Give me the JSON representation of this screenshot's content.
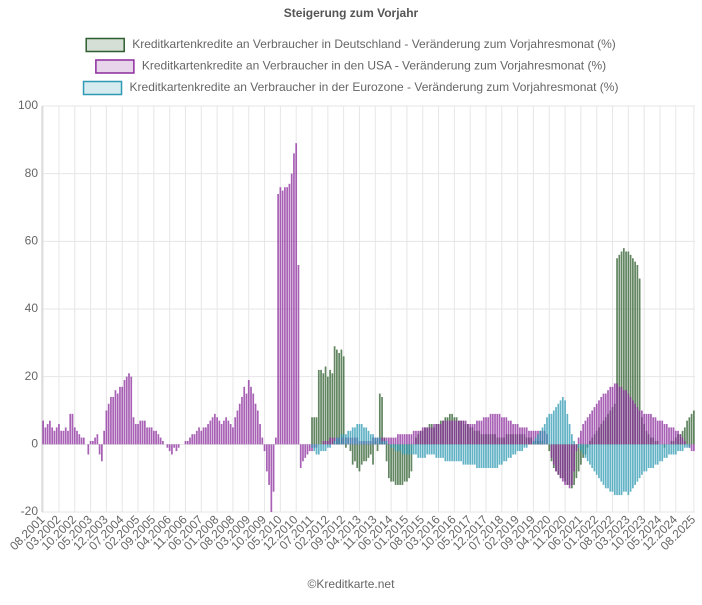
{
  "chart_data": {
    "type": "bar",
    "title": "Steigerung zum Vorjahr",
    "footer": "©Kreditkarte.net",
    "categories": [
      "08.2001",
      null,
      null,
      null,
      null,
      null,
      null,
      "03.2002",
      null,
      null,
      null,
      null,
      null,
      null,
      "10.2002",
      null,
      null,
      null,
      null,
      null,
      null,
      "05.2003",
      null,
      null,
      null,
      null,
      null,
      null,
      "12.2003",
      null,
      null,
      null,
      null,
      null,
      null,
      "07.2004",
      null,
      null,
      null,
      null,
      null,
      null,
      "02.2005",
      null,
      null,
      null,
      null,
      null,
      null,
      "09.2005",
      null,
      null,
      null,
      null,
      null,
      null,
      "04.2006",
      null,
      null,
      null,
      null,
      null,
      null,
      "11.2006",
      null,
      null,
      null,
      null,
      null,
      null,
      "06.2007",
      null,
      null,
      null,
      null,
      null,
      null,
      "01.2008",
      null,
      null,
      null,
      null,
      null,
      null,
      "08.2008",
      null,
      null,
      null,
      null,
      null,
      null,
      "03.2009",
      null,
      null,
      null,
      null,
      null,
      null,
      "10.2009",
      null,
      null,
      null,
      null,
      null,
      null,
      "05.2010",
      null,
      null,
      null,
      null,
      null,
      null,
      "12.2010",
      null,
      null,
      null,
      null,
      null,
      null,
      "07.2011",
      null,
      null,
      null,
      null,
      null,
      null,
      "02.2012",
      null,
      null,
      null,
      null,
      null,
      null,
      "09.2012",
      null,
      null,
      null,
      null,
      null,
      null,
      "04.2013",
      null,
      null,
      null,
      null,
      null,
      null,
      "11.2013",
      null,
      null,
      null,
      null,
      null,
      null,
      "06.2014",
      null,
      null,
      null,
      null,
      null,
      null,
      "01.2015",
      null,
      null,
      null,
      null,
      null,
      null,
      "08.2015",
      null,
      null,
      null,
      null,
      null,
      null,
      "03.2016",
      null,
      null,
      null,
      null,
      null,
      null,
      "10.2016",
      null,
      null,
      null,
      null,
      null,
      null,
      "05.2017",
      null,
      null,
      null,
      null,
      null,
      null,
      "12.2017",
      null,
      null,
      null,
      null,
      null,
      null,
      "07.2018",
      null,
      null,
      null,
      null,
      null,
      null,
      "02.2019",
      null,
      null,
      null,
      null,
      null,
      null,
      "09.2019",
      null,
      null,
      null,
      null,
      null,
      null,
      "04.2020",
      null,
      null,
      null,
      null,
      null,
      null,
      "11.2020",
      null,
      null,
      null,
      null,
      null,
      null,
      "06.2021",
      null,
      null,
      null,
      null,
      null,
      null,
      "01.2022",
      null,
      null,
      null,
      null,
      null,
      null,
      "08.2022",
      null,
      null,
      null,
      null,
      null,
      null,
      "03.2023",
      null,
      null,
      null,
      null,
      null,
      null,
      "10.2023",
      null,
      null,
      null,
      null,
      null,
      null,
      "05.2024",
      null,
      null,
      null,
      null,
      null,
      null,
      "12.2024",
      null,
      null,
      null,
      null,
      null,
      null,
      null,
      "08.2025"
    ],
    "series": [
      {
        "name": "Kreditkartenkredite an Verbraucher in Deutschland - Veränderung zum Vorjahresmonat (%)",
        "color": "#2e5e2e",
        "fill": "rgba(46,94,46,0.2)",
        "values": [
          null,
          null,
          null,
          null,
          null,
          null,
          null,
          null,
          null,
          null,
          null,
          null,
          null,
          null,
          null,
          null,
          null,
          null,
          null,
          null,
          null,
          null,
          null,
          null,
          null,
          null,
          null,
          null,
          null,
          null,
          null,
          null,
          null,
          null,
          null,
          null,
          null,
          null,
          null,
          null,
          null,
          null,
          null,
          null,
          null,
          null,
          null,
          null,
          null,
          null,
          null,
          null,
          null,
          null,
          null,
          null,
          null,
          null,
          null,
          null,
          null,
          null,
          null,
          null,
          null,
          null,
          null,
          null,
          null,
          null,
          null,
          null,
          null,
          null,
          null,
          null,
          null,
          null,
          null,
          null,
          null,
          null,
          null,
          null,
          null,
          null,
          null,
          null,
          null,
          null,
          null,
          null,
          null,
          null,
          null,
          null,
          null,
          null,
          null,
          null,
          null,
          null,
          null,
          null,
          null,
          null,
          null,
          null,
          null,
          null,
          null,
          null,
          null,
          null,
          null,
          null,
          null,
          null,
          null,
          8,
          8,
          8,
          22,
          22,
          21,
          23,
          20,
          22,
          21,
          29,
          28,
          27,
          28,
          26,
          -1,
          0,
          -2,
          -6,
          -5,
          -7,
          -8,
          -6,
          -5,
          -5,
          -4,
          -3,
          -6,
          1,
          -2,
          15,
          14,
          2,
          -5,
          -10,
          -11,
          -11,
          -12,
          -12,
          -12,
          -12,
          -11,
          -11,
          -10,
          -8,
          0,
          2,
          3,
          4,
          4,
          5,
          5,
          6,
          6,
          5,
          6,
          6,
          7,
          7,
          8,
          8,
          9,
          9,
          8,
          8,
          7,
          7,
          7,
          6,
          6,
          5,
          5,
          4,
          4,
          4,
          3,
          3,
          3,
          3,
          3,
          3,
          3,
          2,
          2,
          2,
          2,
          3,
          3,
          3,
          3,
          3,
          3,
          3,
          3,
          3,
          2,
          2,
          2,
          1,
          1,
          1,
          1,
          1,
          0,
          0,
          -2,
          -5,
          -7,
          -8,
          -9,
          -10,
          -10,
          -11,
          -12,
          -12,
          -13,
          -12,
          -10,
          -8,
          -6,
          -4,
          -3,
          -1,
          1,
          2,
          3,
          4,
          5,
          6,
          7,
          8,
          9,
          10,
          11,
          12,
          55,
          56,
          57,
          58,
          57,
          57,
          56,
          55,
          54,
          53,
          49,
          8,
          6,
          4,
          3,
          2,
          2,
          1,
          1,
          0,
          0,
          -1,
          0,
          0,
          1,
          1,
          2,
          3,
          3,
          4,
          5,
          7,
          8,
          9,
          10
        ]
      },
      {
        "name": "Kreditkartenkredite an Verbraucher in den USA - Veränderung zum Vorjahresmonat (%)",
        "color": "#8b2c9c",
        "fill": "rgba(139,44,156,0.2)",
        "values": [
          7,
          5,
          6,
          7,
          5,
          4,
          5,
          6,
          4,
          4,
          5,
          4,
          9,
          9,
          5,
          4,
          3,
          2,
          2,
          0,
          -3,
          1,
          1,
          2,
          3,
          -3,
          -5,
          4,
          10,
          12,
          14,
          14,
          16,
          15,
          17,
          17,
          19,
          20,
          21,
          20,
          8,
          6,
          6,
          7,
          7,
          7,
          5,
          5,
          5,
          4,
          4,
          3,
          2,
          1,
          0,
          -1,
          -2,
          -3,
          -1,
          -2,
          -1,
          0,
          0,
          1,
          1,
          2,
          3,
          3,
          4,
          5,
          4,
          5,
          5,
          6,
          7,
          8,
          9,
          8,
          7,
          6,
          7,
          8,
          7,
          6,
          5,
          8,
          10,
          12,
          14,
          17,
          15,
          19,
          17,
          15,
          12,
          10,
          6,
          2,
          -2,
          -8,
          -12,
          -20,
          -14,
          2,
          74,
          76,
          75,
          76,
          76,
          77,
          80,
          86,
          89,
          53,
          -7,
          -5,
          -4,
          -3,
          -2,
          -2,
          -1,
          -1,
          0,
          0,
          1,
          1,
          1,
          2,
          2,
          2,
          2,
          2,
          2,
          2,
          2,
          2,
          2,
          2,
          2,
          2,
          1,
          1,
          1,
          1,
          1,
          1,
          2,
          2,
          2,
          2,
          2,
          2,
          2,
          2,
          2,
          2,
          2,
          3,
          3,
          3,
          3,
          3,
          3,
          3,
          4,
          4,
          4,
          4,
          5,
          5,
          5,
          5,
          5,
          6,
          6,
          6,
          6,
          7,
          7,
          7,
          7,
          7,
          7,
          7,
          7,
          7,
          7,
          7,
          6,
          6,
          6,
          6,
          7,
          7,
          7,
          8,
          8,
          8,
          9,
          9,
          9,
          9,
          9,
          8,
          8,
          8,
          7,
          7,
          6,
          6,
          6,
          5,
          5,
          5,
          5,
          4,
          4,
          4,
          4,
          4,
          4,
          4,
          4,
          3,
          0,
          -4,
          -6,
          -8,
          -9,
          -10,
          -11,
          -12,
          -12,
          -13,
          -12,
          -8,
          -2,
          2,
          4,
          6,
          7,
          8,
          9,
          10,
          11,
          12,
          13,
          14,
          15,
          15,
          16,
          17,
          17,
          18,
          18,
          17,
          17,
          16,
          16,
          15,
          14,
          13,
          12,
          11,
          10,
          10,
          9,
          9,
          9,
          9,
          8,
          8,
          7,
          7,
          7,
          6,
          6,
          5,
          5,
          5,
          4,
          4,
          3,
          2,
          1,
          0,
          -1,
          -2,
          -2
        ]
      },
      {
        "name": "Kreditkartenkredite an Verbraucher in der Eurozone - Veränderung zum Vorjahresmonat (%)",
        "color": "#2f9ab3",
        "fill": "rgba(47,154,179,0.2)",
        "values": [
          null,
          null,
          null,
          null,
          null,
          null,
          null,
          null,
          null,
          null,
          null,
          null,
          null,
          null,
          null,
          null,
          null,
          null,
          null,
          null,
          null,
          null,
          null,
          null,
          null,
          null,
          null,
          null,
          null,
          null,
          null,
          null,
          null,
          null,
          null,
          null,
          null,
          null,
          null,
          null,
          null,
          null,
          null,
          null,
          null,
          null,
          null,
          null,
          null,
          null,
          null,
          null,
          null,
          null,
          null,
          null,
          null,
          null,
          null,
          null,
          null,
          null,
          null,
          null,
          null,
          null,
          null,
          null,
          null,
          null,
          null,
          null,
          null,
          null,
          null,
          null,
          null,
          null,
          null,
          null,
          null,
          null,
          null,
          null,
          null,
          null,
          null,
          null,
          null,
          null,
          null,
          null,
          null,
          null,
          null,
          null,
          null,
          null,
          null,
          null,
          null,
          null,
          null,
          null,
          null,
          null,
          null,
          null,
          null,
          null,
          null,
          null,
          null,
          null,
          null,
          null,
          null,
          null,
          null,
          -1,
          -2,
          -3,
          -3,
          -2,
          -2,
          -2,
          -1,
          -1,
          0,
          1,
          2,
          2,
          3,
          3,
          3,
          4,
          4,
          5,
          5,
          6,
          6,
          6,
          5,
          5,
          4,
          3,
          3,
          2,
          2,
          2,
          1,
          1,
          1,
          0,
          -1,
          -1,
          -2,
          -2,
          -2,
          -3,
          -3,
          -3,
          -3,
          -3,
          -3,
          -3,
          -4,
          -4,
          -4,
          -4,
          -3,
          -3,
          -3,
          -3,
          -4,
          -4,
          -4,
          -4,
          -5,
          -5,
          -5,
          -5,
          -5,
          -5,
          -5,
          -5,
          -6,
          -6,
          -6,
          -6,
          -6,
          -6,
          -7,
          -7,
          -7,
          -7,
          -7,
          -7,
          -7,
          -7,
          -7,
          -7,
          -6,
          -6,
          -5,
          -5,
          -4,
          -4,
          -3,
          -3,
          -2,
          -2,
          -2,
          -1,
          -1,
          0,
          0,
          1,
          2,
          3,
          4,
          5,
          6,
          8,
          9,
          9,
          10,
          11,
          12,
          13,
          14,
          13,
          9,
          6,
          3,
          1,
          0,
          -1,
          -2,
          -3,
          -4,
          -5,
          -6,
          -7,
          -8,
          -9,
          -10,
          -11,
          -12,
          -13,
          -13,
          -14,
          -14,
          -15,
          -15,
          -15,
          -15,
          -14,
          -14,
          -15,
          -14,
          -13,
          -12,
          -11,
          -10,
          -9,
          -8,
          -8,
          -7,
          -7,
          -7,
          -6,
          -6,
          -5,
          -5,
          -4,
          -4,
          -3,
          -3,
          -3,
          -3,
          -2,
          -2,
          -2,
          -1,
          -1,
          -1,
          0,
          0
        ]
      }
    ],
    "ylim": [
      -20,
      100
    ],
    "yticks": [
      -20,
      0,
      20,
      40,
      60,
      80,
      100
    ],
    "grid": true
  }
}
